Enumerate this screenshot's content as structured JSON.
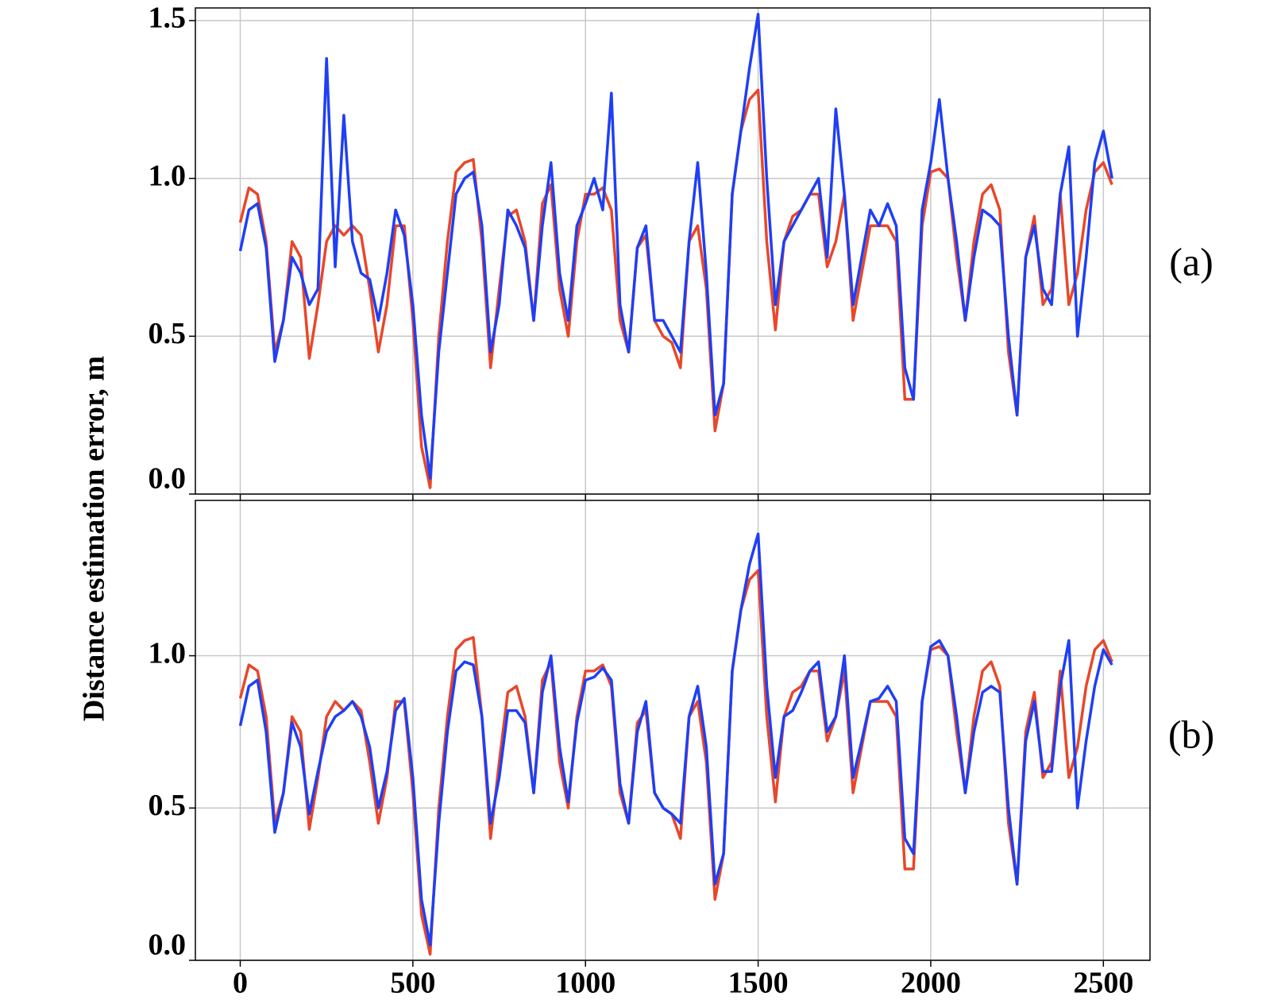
{
  "ylabel": "Distance estimation error, m",
  "chart_data": [
    {
      "type": "line",
      "label": "(a)",
      "xlim": [
        -130,
        2635
      ],
      "ylim": [
        0,
        1.54
      ],
      "xticks": [
        0,
        500,
        1000,
        1500,
        2000,
        2500
      ],
      "yticks": [
        {
          "value": 0,
          "label": "0.0"
        },
        {
          "value": 0.5,
          "label": "0.5"
        },
        {
          "value": 1.0,
          "label": "1.0"
        },
        {
          "value": 1.5,
          "label": "1.5"
        }
      ],
      "grid": true,
      "x": [
        0,
        25,
        50,
        75,
        100,
        125,
        150,
        175,
        200,
        225,
        250,
        275,
        300,
        325,
        350,
        375,
        400,
        425,
        450,
        475,
        500,
        525,
        550,
        575,
        600,
        625,
        650,
        675,
        700,
        725,
        750,
        775,
        800,
        825,
        850,
        875,
        900,
        925,
        950,
        975,
        1000,
        1025,
        1050,
        1075,
        1100,
        1125,
        1150,
        1175,
        1200,
        1225,
        1250,
        1275,
        1300,
        1325,
        1350,
        1375,
        1400,
        1425,
        1450,
        1475,
        1500,
        1525,
        1550,
        1575,
        1600,
        1625,
        1650,
        1675,
        1700,
        1725,
        1750,
        1775,
        1800,
        1825,
        1850,
        1875,
        1900,
        1925,
        1950,
        1975,
        2000,
        2025,
        2050,
        2075,
        2100,
        2125,
        2150,
        2175,
        2200,
        2225,
        2250,
        2275,
        2300,
        2325,
        2350,
        2375,
        2400,
        2425,
        2450,
        2475,
        2500,
        2525
      ],
      "series": [
        {
          "color": "#e8472a",
          "values": [
            0.86,
            0.97,
            0.95,
            0.8,
            0.45,
            0.55,
            0.8,
            0.75,
            0.43,
            0.6,
            0.8,
            0.85,
            0.82,
            0.85,
            0.82,
            0.65,
            0.45,
            0.6,
            0.85,
            0.85,
            0.55,
            0.15,
            0.02,
            0.5,
            0.8,
            1.02,
            1.05,
            1.06,
            0.8,
            0.4,
            0.65,
            0.88,
            0.9,
            0.8,
            0.55,
            0.92,
            0.98,
            0.65,
            0.5,
            0.8,
            0.95,
            0.95,
            0.97,
            0.9,
            0.55,
            0.45,
            0.78,
            0.82,
            0.55,
            0.5,
            0.48,
            0.4,
            0.8,
            0.85,
            0.65,
            0.2,
            0.35,
            0.95,
            1.15,
            1.25,
            1.28,
            0.8,
            0.52,
            0.8,
            0.88,
            0.9,
            0.95,
            0.95,
            0.72,
            0.8,
            0.95,
            0.55,
            0.7,
            0.85,
            0.85,
            0.85,
            0.8,
            0.3,
            0.3,
            0.85,
            1.02,
            1.03,
            1.0,
            0.75,
            0.55,
            0.8,
            0.95,
            0.98,
            0.9,
            0.45,
            0.25,
            0.75,
            0.88,
            0.6,
            0.65,
            0.95,
            0.6,
            0.7,
            0.9,
            1.02,
            1.05,
            0.98
          ]
        },
        {
          "color": "#1f3ff5",
          "values": [
            0.77,
            0.9,
            0.92,
            0.78,
            0.42,
            0.55,
            0.75,
            0.7,
            0.6,
            0.65,
            1.38,
            0.72,
            1.2,
            0.8,
            0.7,
            0.68,
            0.55,
            0.7,
            0.9,
            0.82,
            0.6,
            0.25,
            0.05,
            0.45,
            0.7,
            0.95,
            1.0,
            1.02,
            0.85,
            0.45,
            0.6,
            0.9,
            0.85,
            0.78,
            0.55,
            0.85,
            1.05,
            0.7,
            0.55,
            0.85,
            0.92,
            1.0,
            0.9,
            1.27,
            0.6,
            0.45,
            0.78,
            0.85,
            0.55,
            0.55,
            0.5,
            0.45,
            0.8,
            1.05,
            0.7,
            0.25,
            0.35,
            0.95,
            1.15,
            1.35,
            1.52,
            1.0,
            0.6,
            0.8,
            0.85,
            0.9,
            0.95,
            1.0,
            0.75,
            1.22,
            0.95,
            0.6,
            0.75,
            0.9,
            0.85,
            0.92,
            0.85,
            0.4,
            0.3,
            0.9,
            1.05,
            1.25,
            1.0,
            0.8,
            0.55,
            0.75,
            0.9,
            0.88,
            0.85,
            0.5,
            0.25,
            0.75,
            0.85,
            0.65,
            0.6,
            0.95,
            1.1,
            0.5,
            0.75,
            1.05,
            1.15,
            1.0
          ]
        }
      ]
    },
    {
      "type": "line",
      "label": "(b)",
      "xlim": [
        -130,
        2635
      ],
      "ylim": [
        0,
        1.51
      ],
      "xticks": [
        0,
        500,
        1000,
        1500,
        2000,
        2500
      ],
      "yticks": [
        {
          "value": 0,
          "label": "0.0"
        },
        {
          "value": 0.5,
          "label": "0.5"
        },
        {
          "value": 1.0,
          "label": "1.0"
        }
      ],
      "grid": true,
      "x": [
        0,
        25,
        50,
        75,
        100,
        125,
        150,
        175,
        200,
        225,
        250,
        275,
        300,
        325,
        350,
        375,
        400,
        425,
        450,
        475,
        500,
        525,
        550,
        575,
        600,
        625,
        650,
        675,
        700,
        725,
        750,
        775,
        800,
        825,
        850,
        875,
        900,
        925,
        950,
        975,
        1000,
        1025,
        1050,
        1075,
        1100,
        1125,
        1150,
        1175,
        1200,
        1225,
        1250,
        1275,
        1300,
        1325,
        1350,
        1375,
        1400,
        1425,
        1450,
        1475,
        1500,
        1525,
        1550,
        1575,
        1600,
        1625,
        1650,
        1675,
        1700,
        1725,
        1750,
        1775,
        1800,
        1825,
        1850,
        1875,
        1900,
        1925,
        1950,
        1975,
        2000,
        2025,
        2050,
        2075,
        2100,
        2125,
        2150,
        2175,
        2200,
        2225,
        2250,
        2275,
        2300,
        2325,
        2350,
        2375,
        2400,
        2425,
        2450,
        2475,
        2500,
        2525
      ],
      "series": [
        {
          "color": "#e8472a",
          "values": [
            0.86,
            0.97,
            0.95,
            0.8,
            0.45,
            0.55,
            0.8,
            0.75,
            0.43,
            0.6,
            0.8,
            0.85,
            0.82,
            0.85,
            0.82,
            0.65,
            0.45,
            0.6,
            0.85,
            0.85,
            0.55,
            0.15,
            0.02,
            0.5,
            0.8,
            1.02,
            1.05,
            1.06,
            0.8,
            0.4,
            0.65,
            0.88,
            0.9,
            0.8,
            0.55,
            0.92,
            0.98,
            0.65,
            0.5,
            0.8,
            0.95,
            0.95,
            0.97,
            0.9,
            0.55,
            0.45,
            0.78,
            0.82,
            0.55,
            0.5,
            0.48,
            0.4,
            0.8,
            0.85,
            0.65,
            0.2,
            0.35,
            0.95,
            1.15,
            1.25,
            1.28,
            0.8,
            0.52,
            0.8,
            0.88,
            0.9,
            0.95,
            0.95,
            0.72,
            0.8,
            0.95,
            0.55,
            0.7,
            0.85,
            0.85,
            0.85,
            0.8,
            0.3,
            0.3,
            0.85,
            1.02,
            1.03,
            1.0,
            0.75,
            0.55,
            0.8,
            0.95,
            0.98,
            0.9,
            0.45,
            0.25,
            0.75,
            0.88,
            0.6,
            0.65,
            0.95,
            0.6,
            0.7,
            0.9,
            1.02,
            1.05,
            0.98
          ]
        },
        {
          "color": "#1f3ff5",
          "values": [
            0.77,
            0.9,
            0.92,
            0.75,
            0.42,
            0.55,
            0.78,
            0.7,
            0.48,
            0.62,
            0.75,
            0.8,
            0.82,
            0.85,
            0.8,
            0.7,
            0.5,
            0.62,
            0.82,
            0.86,
            0.6,
            0.2,
            0.05,
            0.45,
            0.75,
            0.95,
            0.98,
            0.97,
            0.8,
            0.45,
            0.6,
            0.82,
            0.82,
            0.78,
            0.55,
            0.88,
            1.0,
            0.7,
            0.52,
            0.78,
            0.92,
            0.93,
            0.96,
            0.92,
            0.58,
            0.45,
            0.75,
            0.85,
            0.55,
            0.5,
            0.48,
            0.45,
            0.8,
            0.9,
            0.7,
            0.25,
            0.35,
            0.95,
            1.15,
            1.3,
            1.4,
            0.9,
            0.6,
            0.8,
            0.82,
            0.88,
            0.95,
            0.98,
            0.75,
            0.8,
            1.0,
            0.6,
            0.72,
            0.85,
            0.86,
            0.9,
            0.85,
            0.4,
            0.35,
            0.85,
            1.03,
            1.05,
            1.0,
            0.8,
            0.55,
            0.75,
            0.88,
            0.9,
            0.88,
            0.5,
            0.25,
            0.72,
            0.85,
            0.62,
            0.62,
            0.9,
            1.05,
            0.5,
            0.72,
            0.9,
            1.02,
            0.97
          ]
        }
      ]
    }
  ]
}
